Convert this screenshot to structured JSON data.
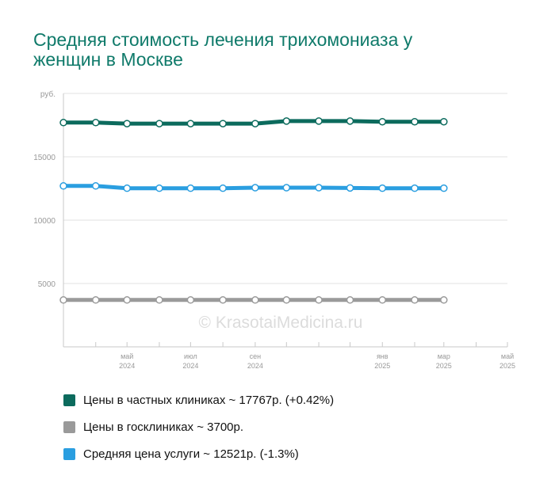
{
  "title": "Средняя стоимость лечения трихомониаза у женщин в Москве",
  "watermark": "© KrasotaiMedicina.ru",
  "chart_data": {
    "type": "line",
    "title": "Средняя стоимость лечения трихомониаза у женщин в Москве",
    "ylabel": "руб.",
    "ylim": [
      0,
      20000
    ],
    "yticks": [
      5000,
      10000,
      15000
    ],
    "x": [
      "2024-03",
      "2024-04",
      "2024-05",
      "2024-06",
      "2024-07",
      "2024-08",
      "2024-09",
      "2024-10",
      "2024-11",
      "2024-12",
      "2025-01",
      "2025-02",
      "2025-03",
      "2025-04",
      "2025-05"
    ],
    "xticks": [
      {
        "month": "май",
        "year": "2024"
      },
      {
        "month": "июл",
        "year": "2024"
      },
      {
        "month": "сен",
        "year": "2024"
      },
      {
        "month": "янв",
        "year": "2025"
      },
      {
        "month": "мар",
        "year": "2025"
      },
      {
        "month": "май",
        "year": "2025"
      }
    ],
    "grid": true,
    "legend_position": "bottom",
    "series": [
      {
        "name": "Цены в частных клиниках",
        "color": "#0c6b5d",
        "points": [
          [
            "2024-03-01",
            17700
          ],
          [
            "2024-04-01",
            17700
          ],
          [
            "2024-05-01",
            17620
          ],
          [
            "2024-06-01",
            17620
          ],
          [
            "2024-07-01",
            17620
          ],
          [
            "2024-08-01",
            17620
          ],
          [
            "2024-09-01",
            17620
          ],
          [
            "2024-10-01",
            17820
          ],
          [
            "2024-11-01",
            17820
          ],
          [
            "2024-12-01",
            17820
          ],
          [
            "2025-01-01",
            17767
          ],
          [
            "2025-02-01",
            17767
          ],
          [
            "2025-03-01",
            17767
          ]
        ]
      },
      {
        "name": "Цены в госклиниках",
        "color": "#9a9a9a",
        "points": [
          [
            "2024-03-01",
            3700
          ],
          [
            "2024-04-01",
            3700
          ],
          [
            "2024-05-01",
            3700
          ],
          [
            "2024-06-01",
            3700
          ],
          [
            "2024-07-01",
            3700
          ],
          [
            "2024-08-01",
            3700
          ],
          [
            "2024-09-01",
            3700
          ],
          [
            "2024-10-01",
            3700
          ],
          [
            "2024-11-01",
            3700
          ],
          [
            "2024-12-01",
            3700
          ],
          [
            "2025-01-01",
            3700
          ],
          [
            "2025-02-01",
            3700
          ],
          [
            "2025-03-01",
            3700
          ]
        ]
      },
      {
        "name": "Средняя цена услуги",
        "color": "#2a9ee0",
        "points": [
          [
            "2024-03-01",
            12700
          ],
          [
            "2024-04-01",
            12700
          ],
          [
            "2024-05-01",
            12520
          ],
          [
            "2024-06-01",
            12520
          ],
          [
            "2024-07-01",
            12520
          ],
          [
            "2024-08-01",
            12520
          ],
          [
            "2024-09-01",
            12560
          ],
          [
            "2024-10-01",
            12560
          ],
          [
            "2024-11-01",
            12560
          ],
          [
            "2024-12-01",
            12540
          ],
          [
            "2025-01-01",
            12521
          ],
          [
            "2025-02-01",
            12521
          ],
          [
            "2025-03-01",
            12521
          ]
        ]
      }
    ]
  },
  "legend": [
    {
      "label": "Цены в частных клиниках ~ 17767р. (+0.42%)",
      "color": "#0c6b5d"
    },
    {
      "label": "Цены в госклиниках ~ 3700р.",
      "color": "#9a9a9a"
    },
    {
      "label": "Средняя цена услуги ~ 12521р. (-1.3%)",
      "color": "#2a9ee0"
    }
  ]
}
